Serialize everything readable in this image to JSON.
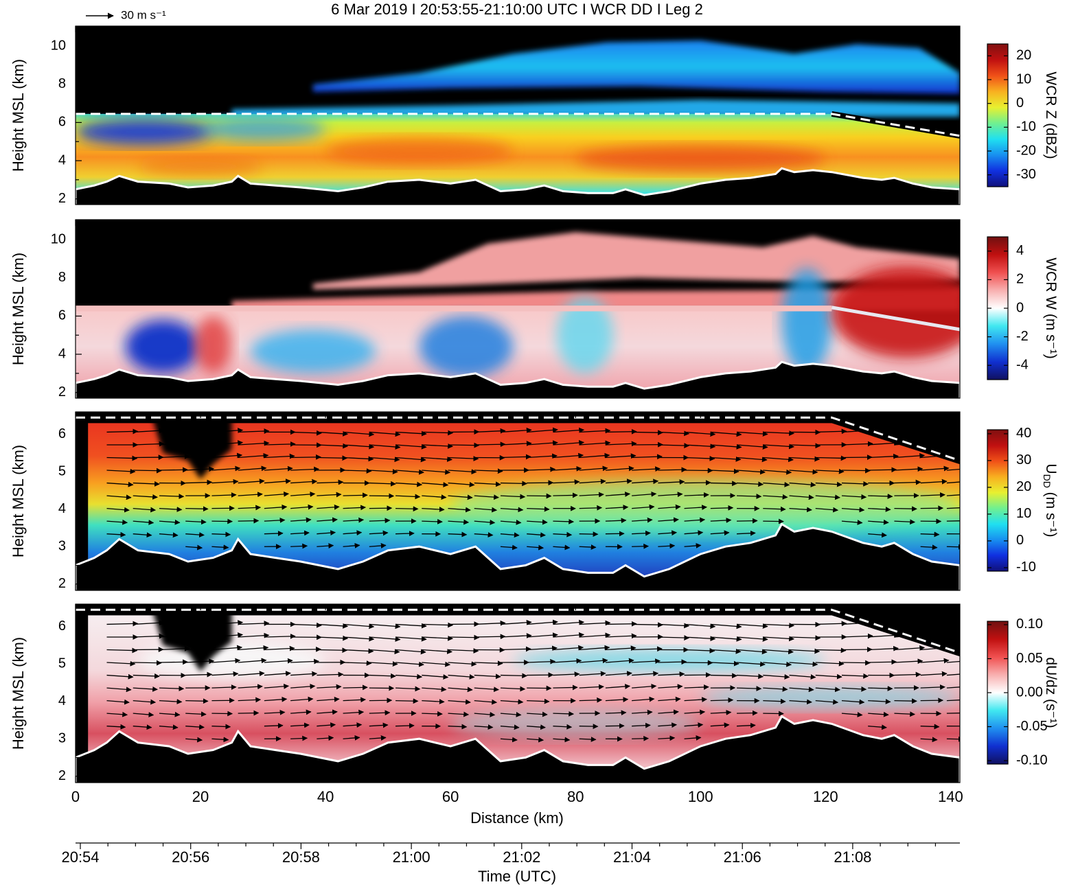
{
  "title": "6 Mar 2019  I  20:53:55-21:10:00 UTC  I  WCR DD  I  Leg 2",
  "vector_key": "30 m s⁻¹",
  "chart_data": [
    {
      "type": "heatmap",
      "ylabel": "Height MSL (km)",
      "ylim": [
        1.7,
        11.05
      ],
      "yticks": [
        2,
        4,
        6,
        8,
        10
      ],
      "colorbar": {
        "label": "WCR Z (dBZ)",
        "clim": [
          -35,
          25
        ],
        "ticks": [
          -30,
          -20,
          -10,
          0,
          10,
          20
        ],
        "colormap": [
          "#10107a",
          "#1030e0",
          "#1890f0",
          "#20e0f0",
          "#70f090",
          "#e8f030",
          "#f8b020",
          "#f05018",
          "#c01010",
          "#801010"
        ]
      }
    },
    {
      "type": "heatmap",
      "ylabel": "Height MSL (km)",
      "ylim": [
        1.7,
        11.05
      ],
      "yticks": [
        2,
        4,
        6,
        8,
        10
      ],
      "colorbar": {
        "label": "WCR W (m s⁻¹)",
        "clim": [
          -5,
          5
        ],
        "ticks": [
          -4,
          -2,
          0,
          2,
          4
        ],
        "colormap": [
          "#101060",
          "#1030d0",
          "#2090f0",
          "#40e8f0",
          "#ffffff",
          "#f8b0b0",
          "#f05050",
          "#c01010",
          "#701010"
        ]
      }
    },
    {
      "type": "heatmap",
      "ylabel": "Height MSL (km)",
      "ylim": [
        1.83,
        6.6
      ],
      "yticks": [
        2,
        3,
        4,
        5,
        6
      ],
      "colorbar": {
        "label": "U",
        "label_sub": "DD",
        "label_unit": " (m s⁻¹)",
        "clim": [
          -11.3,
          41.5
        ],
        "ticks": [
          -10,
          0,
          10,
          20,
          30,
          40
        ],
        "colormap": [
          "#10107a",
          "#1030e0",
          "#1890f0",
          "#20e0f0",
          "#70f090",
          "#e8f030",
          "#f8b020",
          "#f05018",
          "#c01010",
          "#801010"
        ]
      }
    },
    {
      "type": "heatmap",
      "ylabel": "Height MSL (km)",
      "ylim": [
        1.83,
        6.6
      ],
      "yticks": [
        2,
        3,
        4,
        5,
        6
      ],
      "colorbar": {
        "label": "dU/dz (s⁻¹)",
        "clim": [
          -0.105,
          0.105
        ],
        "ticks": [
          {
            "value": 0.1,
            "label": "0.10"
          },
          {
            "value": 0.05,
            "label": "0.05"
          },
          {
            "value": 0,
            "label": "0.00"
          },
          {
            "value": -0.05,
            "label": "-0.05"
          },
          {
            "value": -0.1,
            "label": "-0.10"
          }
        ],
        "colormap": [
          "#101060",
          "#1030d0",
          "#2090f0",
          "#40e8f0",
          "#ffffff",
          "#f8b0b0",
          "#f05050",
          "#c01010",
          "#701010"
        ]
      },
      "xlabel": "Distance (km)",
      "xlim": [
        0,
        141.5
      ],
      "xticks": [
        0,
        20,
        40,
        60,
        80,
        100,
        120,
        140
      ]
    }
  ],
  "time_axis": {
    "label": "Time (UTC)",
    "ticks": [
      "20:54",
      "20:56",
      "20:58",
      "21:00",
      "21:02",
      "21:04",
      "21:06",
      "21:08"
    ]
  }
}
